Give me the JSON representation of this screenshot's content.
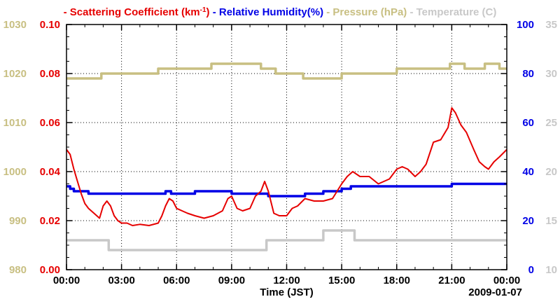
{
  "chart_data": {
    "type": "line",
    "legend": {
      "placement": "top",
      "entries": [
        {
          "label": "Scattering Coefficient (km",
          "sup": "-1",
          "suffix": ")",
          "color": "#e60000"
        },
        {
          "label": "Relative Humidity(%)",
          "color": "#0000e6"
        },
        {
          "label": "Pressure (hPa)",
          "color": "#c8bf82"
        },
        {
          "label": "Temperature (C)",
          "color": "#c8c8c8"
        }
      ]
    },
    "xlabel": "Time (JST)",
    "date_label": "2009-01-07",
    "x_ticks": [
      "00:00",
      "03:00",
      "06:00",
      "09:00",
      "12:00",
      "15:00",
      "18:00",
      "21:00",
      "00:00"
    ],
    "xlim": [
      0,
      24
    ],
    "grid": true,
    "axes": {
      "pressure": {
        "side": "left-outer",
        "ylim": [
          980,
          1030
        ],
        "ticks": [
          980,
          990,
          1000,
          1010,
          1020,
          1030
        ],
        "color": "#c8bf82"
      },
      "scattering": {
        "side": "left-inner",
        "ylim": [
          0,
          0.1
        ],
        "ticks": [
          "0.00",
          "0.02",
          "0.04",
          "0.06",
          "0.08",
          "0.10"
        ],
        "color": "#e60000"
      },
      "humidity": {
        "side": "right-inner",
        "ylim": [
          0,
          100
        ],
        "ticks": [
          0,
          20,
          40,
          60,
          80,
          100
        ],
        "color": "#0000e6"
      },
      "temperature": {
        "side": "right-outer",
        "ylim": [
          10,
          35
        ],
        "ticks": [
          10,
          15,
          20,
          25,
          30,
          35
        ],
        "color": "#c8c8c8"
      }
    },
    "series": [
      {
        "name": "Scattering Coefficient (km-1)",
        "axis": "scattering",
        "color": "#e60000",
        "step": false,
        "x": [
          0,
          0.2,
          0.4,
          0.6,
          0.8,
          1.0,
          1.2,
          1.5,
          1.8,
          2.0,
          2.2,
          2.4,
          2.6,
          2.8,
          3.0,
          3.3,
          3.6,
          4.0,
          4.5,
          5.0,
          5.2,
          5.4,
          5.6,
          5.8,
          6.0,
          6.3,
          6.6,
          7.0,
          7.5,
          8.0,
          8.5,
          8.8,
          9.0,
          9.3,
          9.6,
          10.0,
          10.3,
          10.6,
          10.8,
          11.0,
          11.3,
          11.6,
          12.0,
          12.3,
          12.6,
          13.0,
          13.5,
          14.0,
          14.5,
          15.0,
          15.3,
          15.6,
          16.0,
          16.5,
          17.0,
          17.3,
          17.6,
          18.0,
          18.3,
          18.6,
          19.0,
          19.3,
          19.6,
          20.0,
          20.4,
          20.8,
          21.0,
          21.2,
          21.5,
          21.8,
          22.2,
          22.5,
          22.8,
          23.0,
          23.3,
          23.6,
          24.0
        ],
        "values": [
          0.049,
          0.047,
          0.041,
          0.036,
          0.031,
          0.027,
          0.025,
          0.023,
          0.021,
          0.026,
          0.028,
          0.026,
          0.022,
          0.02,
          0.019,
          0.019,
          0.018,
          0.0185,
          0.018,
          0.019,
          0.022,
          0.026,
          0.029,
          0.028,
          0.025,
          0.024,
          0.023,
          0.022,
          0.021,
          0.022,
          0.024,
          0.029,
          0.03,
          0.025,
          0.024,
          0.025,
          0.03,
          0.032,
          0.036,
          0.032,
          0.023,
          0.022,
          0.022,
          0.025,
          0.026,
          0.029,
          0.028,
          0.028,
          0.029,
          0.035,
          0.038,
          0.04,
          0.038,
          0.038,
          0.035,
          0.036,
          0.037,
          0.041,
          0.042,
          0.041,
          0.038,
          0.04,
          0.043,
          0.052,
          0.053,
          0.058,
          0.066,
          0.064,
          0.059,
          0.056,
          0.049,
          0.044,
          0.042,
          0.041,
          0.044,
          0.046,
          0.049
        ]
      },
      {
        "name": "Relative Humidity(%)",
        "axis": "humidity",
        "color": "#0000e6",
        "step": true,
        "x": [
          0,
          0.2,
          0.4,
          0.8,
          1.2,
          2.0,
          3.0,
          5.0,
          5.4,
          5.7,
          6.0,
          7.0,
          8.0,
          9.0,
          10.0,
          11.0,
          11.5,
          12.0,
          13.0,
          14.0,
          14.5,
          15.0,
          15.5,
          16.0,
          17.0,
          18.0,
          19.0,
          20.0,
          21.0,
          22.0,
          23.0,
          24.0
        ],
        "values": [
          34,
          33,
          32,
          32,
          31,
          31,
          31,
          31,
          32,
          31,
          31,
          32,
          32,
          31,
          31,
          30,
          30,
          30,
          31,
          32,
          32,
          33,
          34,
          34,
          34,
          34,
          34,
          34,
          35,
          35,
          35,
          35
        ]
      },
      {
        "name": "Pressure (hPa)",
        "axis": "pressure",
        "color": "#c8bf82",
        "step": true,
        "x": [
          0,
          1.1,
          1.9,
          5.0,
          7.9,
          9.3,
          10.6,
          11.4,
          12.9,
          15.0,
          16.3,
          18.0,
          19.1,
          20.2,
          20.9,
          21.7,
          22.8,
          23.6,
          24.0
        ],
        "values": [
          1019,
          1019,
          1020,
          1021,
          1022,
          1022,
          1021,
          1020,
          1019,
          1020,
          1020,
          1021,
          1021,
          1021,
          1022,
          1021,
          1022,
          1021,
          1021
        ]
      },
      {
        "name": "Temperature (C)",
        "axis": "temperature",
        "color": "#c8c8c8",
        "step": true,
        "x": [
          0,
          2.3,
          10.9,
          14.0,
          15.7,
          24.0
        ],
        "values": [
          13,
          12,
          13,
          14,
          13,
          13
        ]
      }
    ]
  }
}
